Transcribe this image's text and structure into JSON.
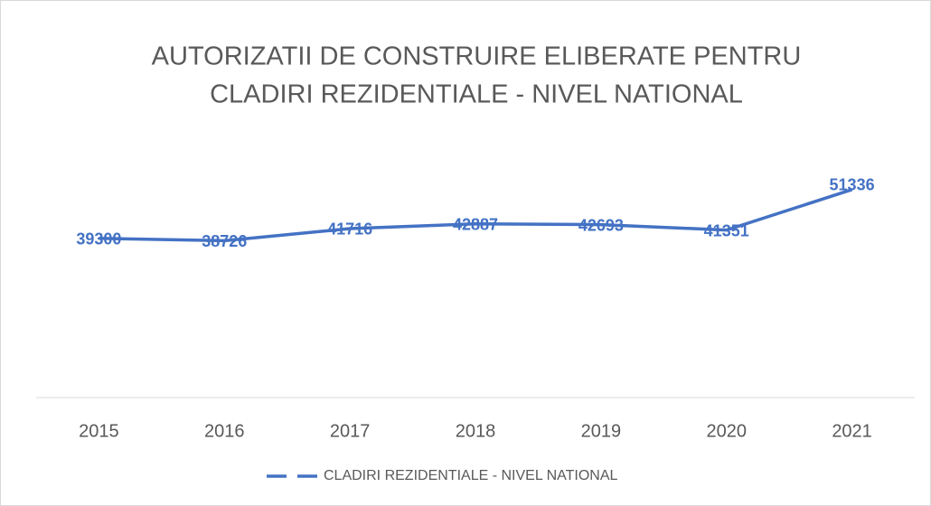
{
  "chart_data": {
    "type": "line",
    "title": [
      "AUTORIZATII DE CONSTRUIRE ELIBERATE PENTRU",
      "CLADIRI REZIDENTIALE - NIVEL NATIONAL"
    ],
    "categories": [
      "2015",
      "2016",
      "2017",
      "2018",
      "2019",
      "2020",
      "2021"
    ],
    "series": [
      {
        "name": "CLADIRI REZIDENTIALE - NIVEL NATIONAL",
        "color": "#4472c4",
        "values": [
          39300,
          38726,
          41716,
          42887,
          42693,
          41351,
          51336
        ]
      }
    ],
    "ylim": [
      0,
      60000
    ],
    "grid": false,
    "legend": "bottom",
    "data_labels": true
  }
}
